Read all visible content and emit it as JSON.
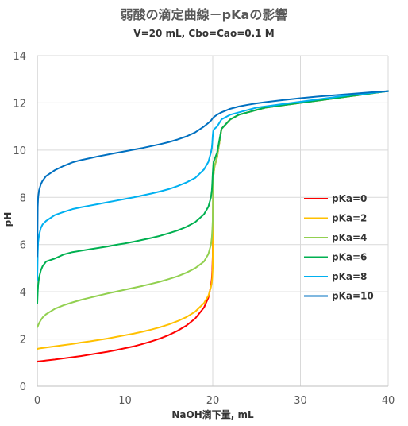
{
  "chart_data": {
    "type": "line",
    "title": "弱酸の滴定曲線－pKaの影響",
    "subtitle": "V=20 mL, Cbo=Cao=0.1 M",
    "xlabel": "NaOH滴下量, mL",
    "ylabel": "pH",
    "xlim": [
      0,
      40
    ],
    "ylim": [
      0,
      14
    ],
    "x_ticks": [
      0,
      10,
      20,
      30,
      40
    ],
    "y_ticks": [
      0,
      2,
      4,
      6,
      8,
      10,
      12,
      14
    ],
    "grid": true,
    "legend_position": "right",
    "x": [
      0,
      0.05,
      0.1,
      0.2,
      0.4,
      0.6,
      1,
      2,
      3,
      4,
      5,
      6,
      7,
      8,
      9,
      10,
      11,
      12,
      13,
      14,
      15,
      16,
      17,
      18,
      19,
      19.5,
      19.8,
      19.9,
      19.95,
      20,
      20.05,
      20.1,
      20.2,
      20.5,
      21,
      22,
      23,
      24,
      25,
      26,
      28,
      30,
      32,
      34,
      36,
      38,
      40
    ],
    "series": [
      {
        "name": "pKa=0",
        "color": "#ff0000",
        "values": [
          1.04,
          1.04,
          1.05,
          1.05,
          1.06,
          1.07,
          1.09,
          1.13,
          1.18,
          1.23,
          1.28,
          1.34,
          1.4,
          1.46,
          1.53,
          1.61,
          1.69,
          1.79,
          1.9,
          2.02,
          2.17,
          2.35,
          2.57,
          2.87,
          3.33,
          3.75,
          4.26,
          4.56,
          4.89,
          5.5,
          8.7,
          9.0,
          9.3,
          9.7,
          10.9,
          11.3,
          11.5,
          11.6,
          11.7,
          11.8,
          11.9,
          12.0,
          12.1,
          12.2,
          12.3,
          12.4,
          12.5
        ]
      },
      {
        "name": "pKa=2",
        "color": "#ffc000",
        "values": [
          1.58,
          1.58,
          1.59,
          1.6,
          1.61,
          1.62,
          1.64,
          1.69,
          1.74,
          1.79,
          1.85,
          1.9,
          1.96,
          2.02,
          2.09,
          2.16,
          2.23,
          2.31,
          2.4,
          2.5,
          2.62,
          2.76,
          2.93,
          3.16,
          3.52,
          3.83,
          4.2,
          4.4,
          4.6,
          5.0,
          8.7,
          9.0,
          9.3,
          9.7,
          10.9,
          11.3,
          11.5,
          11.6,
          11.7,
          11.8,
          11.9,
          12.0,
          12.1,
          12.2,
          12.3,
          12.4,
          12.5
        ]
      },
      {
        "name": "pKa=4",
        "color": "#92d050",
        "values": [
          2.5,
          2.53,
          2.58,
          2.67,
          2.8,
          2.91,
          3.05,
          3.28,
          3.43,
          3.55,
          3.66,
          3.75,
          3.84,
          3.93,
          4.01,
          4.09,
          4.17,
          4.25,
          4.34,
          4.43,
          4.54,
          4.66,
          4.81,
          5.0,
          5.28,
          5.6,
          6.0,
          6.3,
          6.6,
          7.0,
          8.7,
          9.0,
          9.3,
          9.7,
          10.9,
          11.3,
          11.5,
          11.6,
          11.7,
          11.8,
          11.9,
          12.0,
          12.1,
          12.2,
          12.3,
          12.4,
          12.5
        ]
      },
      {
        "name": "pKa=6",
        "color": "#00b050",
        "values": [
          3.5,
          3.98,
          4.3,
          4.6,
          4.9,
          5.08,
          5.28,
          5.41,
          5.58,
          5.68,
          5.74,
          5.8,
          5.86,
          5.92,
          5.99,
          6.05,
          6.12,
          6.2,
          6.28,
          6.37,
          6.48,
          6.6,
          6.75,
          6.95,
          7.28,
          7.6,
          8.0,
          8.3,
          8.6,
          9.0,
          9.3,
          9.5,
          9.6,
          9.9,
          10.9,
          11.3,
          11.5,
          11.6,
          11.7,
          11.8,
          11.9,
          12.0,
          12.1,
          12.2,
          12.3,
          12.4,
          12.5
        ]
      },
      {
        "name": "pKa=8",
        "color": "#00b0f0",
        "values": [
          4.5,
          5.6,
          6.1,
          6.4,
          6.7,
          6.85,
          7.0,
          7.25,
          7.38,
          7.5,
          7.58,
          7.65,
          7.72,
          7.79,
          7.86,
          7.93,
          8.0,
          8.08,
          8.16,
          8.25,
          8.35,
          8.48,
          8.63,
          8.82,
          9.18,
          9.5,
          9.9,
          10.1,
          10.3,
          10.6,
          10.8,
          10.85,
          10.9,
          11.0,
          11.3,
          11.5,
          11.6,
          11.7,
          11.8,
          11.85,
          11.95,
          12.05,
          12.15,
          12.25,
          12.35,
          12.42,
          12.5
        ]
      },
      {
        "name": "pKa=10",
        "color": "#0070c0",
        "values": [
          5.5,
          7.6,
          8.0,
          8.3,
          8.55,
          8.7,
          8.9,
          9.15,
          9.33,
          9.48,
          9.58,
          9.66,
          9.74,
          9.81,
          9.88,
          9.95,
          10.02,
          10.09,
          10.17,
          10.25,
          10.34,
          10.45,
          10.58,
          10.75,
          11.0,
          11.15,
          11.25,
          11.3,
          11.33,
          11.35,
          11.37,
          11.39,
          11.42,
          11.5,
          11.6,
          11.75,
          11.85,
          11.92,
          11.98,
          12.03,
          12.12,
          12.2,
          12.27,
          12.33,
          12.39,
          12.45,
          12.5
        ]
      }
    ]
  }
}
